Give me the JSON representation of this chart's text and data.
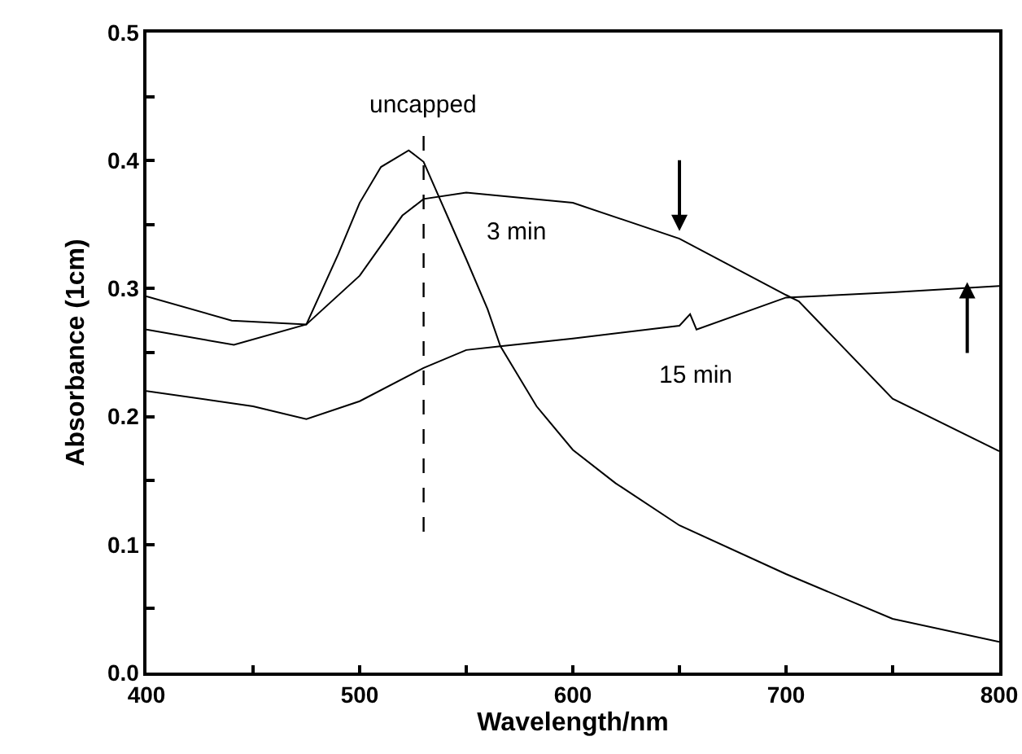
{
  "chart_data": {
    "type": "line",
    "xlabel": "Wavelength/nm",
    "ylabel": "Absorbance (1cm)",
    "xlim": [
      400,
      800
    ],
    "ylim": [
      0,
      0.5
    ],
    "xticks": [
      400,
      {
        "value": 450,
        "label": null
      },
      500,
      {
        "value": 550,
        "label": null
      },
      600,
      {
        "value": 650,
        "label": null
      },
      700,
      {
        "value": 750,
        "label": null
      },
      800
    ],
    "yticks": [
      {
        "value": 0,
        "label": "0.0"
      },
      {
        "value": 0.05,
        "label": null
      },
      0.1,
      {
        "value": 0.15,
        "label": null
      },
      0.2,
      {
        "value": 0.25,
        "label": null
      },
      0.3,
      {
        "value": 0.35,
        "label": null
      },
      0.4,
      {
        "value": 0.45,
        "label": null
      },
      0.5
    ],
    "grid": false,
    "legend": false,
    "marker": "none",
    "line_style": "solid",
    "series": [
      {
        "color": "#000000",
        "x": [
          400,
          440,
          475,
          490,
          500,
          510,
          523,
          530,
          540,
          550,
          560,
          566,
          583,
          600,
          620,
          650,
          700,
          750,
          800
        ],
        "values": [
          0.294,
          0.275,
          0.272,
          0.327,
          0.367,
          0.395,
          0.408,
          0.399,
          0.361,
          0.323,
          0.284,
          0.255,
          0.208,
          0.174,
          0.148,
          0.115,
          0.077,
          0.042,
          0.024
        ]
      },
      {
        "name": "3 min",
        "color": "#000000",
        "x": [
          400,
          441,
          475,
          500,
          520,
          530,
          550,
          600,
          650,
          700,
          706,
          750,
          800
        ],
        "values": [
          0.268,
          0.256,
          0.272,
          0.31,
          0.357,
          0.37,
          0.375,
          0.367,
          0.339,
          0.295,
          0.29,
          0.214,
          0.173
        ]
      },
      {
        "name": "15 min",
        "color": "#000000",
        "x": [
          400,
          450,
          475,
          500,
          530,
          550,
          566,
          600,
          650,
          655,
          658,
          700,
          750,
          800
        ],
        "values": [
          0.22,
          0.208,
          0.198,
          0.212,
          0.238,
          0.252,
          0.255,
          0.261,
          0.271,
          0.28,
          0.268,
          0.293,
          0.297,
          0.302
        ]
      }
    ],
    "ref_lines": [
      {
        "axis": "x",
        "value": 530,
        "label": "uncapped",
        "line_style": "dashed",
        "color": "#000000"
      }
    ]
  }
}
